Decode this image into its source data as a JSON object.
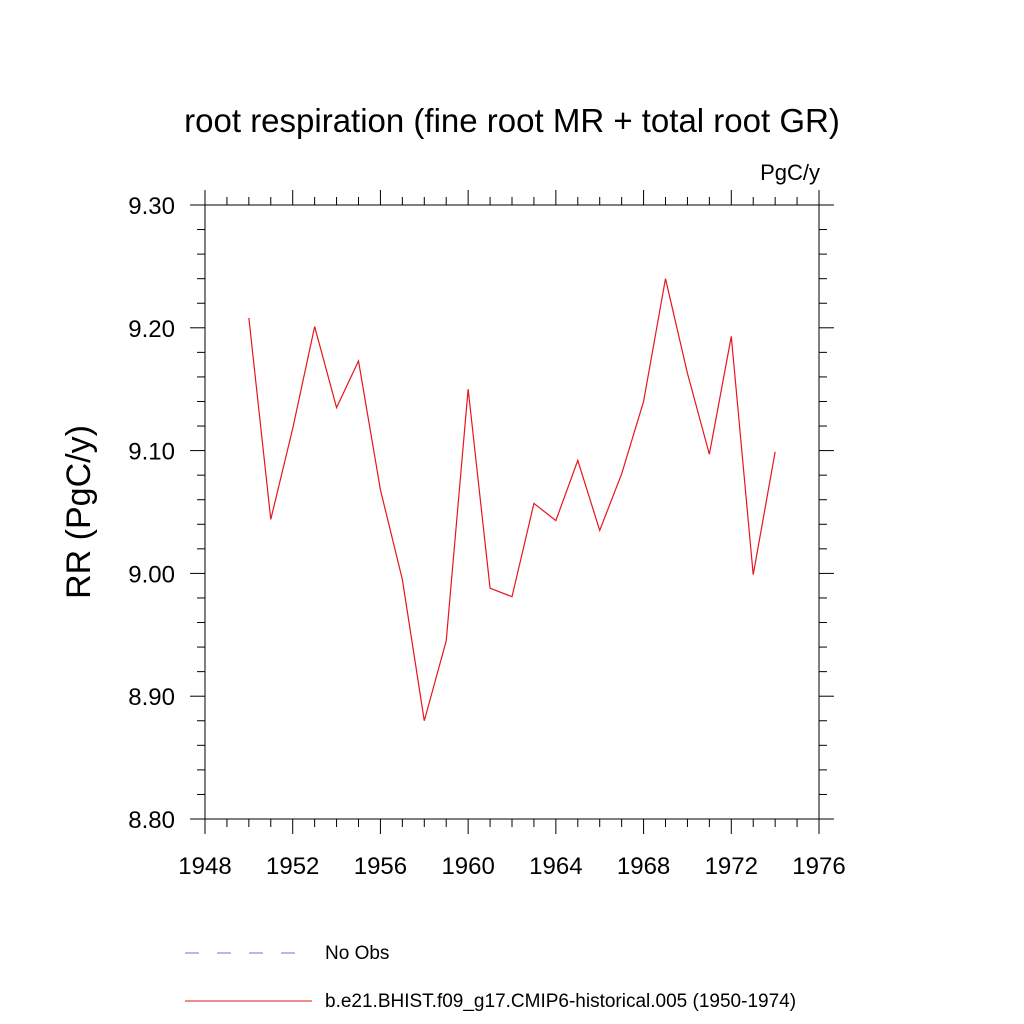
{
  "chart_data": {
    "type": "line",
    "title": "root respiration (fine root MR + total root GR)",
    "units": "PgC/y",
    "xlabel": "",
    "ylabel": "RR  (PgC/y)",
    "xlim": [
      1948,
      1976
    ],
    "ylim": [
      8.8,
      9.3
    ],
    "x_ticks": [
      1948,
      1952,
      1956,
      1960,
      1964,
      1968,
      1972,
      1976
    ],
    "x_tick_labels": [
      "1948",
      "1952",
      "1956",
      "1960",
      "1964",
      "1968",
      "1972",
      "1976"
    ],
    "y_ticks": [
      8.8,
      8.9,
      9.0,
      9.1,
      9.2,
      9.3
    ],
    "y_tick_labels": [
      "8.80",
      "8.90",
      "9.00",
      "9.10",
      "9.20",
      "9.30"
    ],
    "series": [
      {
        "name": "b.e21.BHIST.f09_g17.CMIP6-historical.005 (1950-1974)",
        "color": "#e8141e",
        "style": "solid",
        "x": [
          1950,
          1951,
          1952,
          1953,
          1954,
          1955,
          1956,
          1957,
          1958,
          1959,
          1960,
          1961,
          1962,
          1963,
          1964,
          1965,
          1966,
          1967,
          1968,
          1969,
          1970,
          1971,
          1972,
          1973,
          1974
        ],
        "values": [
          9.208,
          9.044,
          9.118,
          9.201,
          9.135,
          9.173,
          9.068,
          8.995,
          8.88,
          8.945,
          9.15,
          8.988,
          8.981,
          9.057,
          9.043,
          9.092,
          9.035,
          9.081,
          9.14,
          9.24,
          9.163,
          9.097,
          9.193,
          8.999,
          9.099
        ]
      }
    ],
    "legend": [
      {
        "label": "No Obs",
        "color": "#7a6fd0",
        "style": "dashed"
      },
      {
        "label": "b.e21.BHIST.f09_g17.CMIP6-historical.005 (1950-1974)",
        "color": "#e8141e",
        "style": "solid"
      }
    ]
  }
}
